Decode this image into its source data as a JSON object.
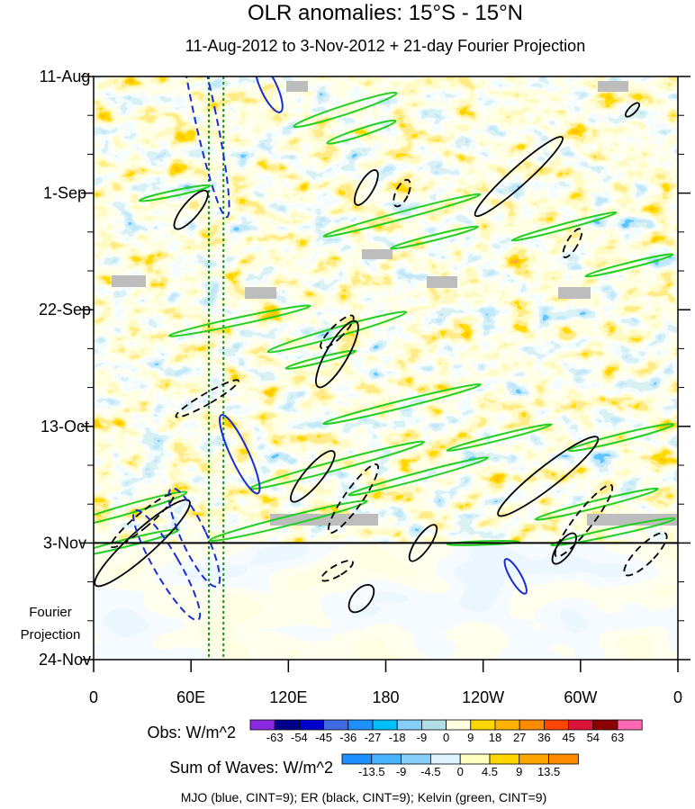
{
  "chart_data": {
    "type": "heatmap",
    "title": "OLR anomalies: 15°S - 15°N",
    "subtitle": "11-Aug-2012 to 3-Nov-2012 + 21-day Fourier Projection",
    "x_ticks": [
      {
        "lon": 0,
        "label": "0"
      },
      {
        "lon": 60,
        "label": "60E"
      },
      {
        "lon": 120,
        "label": "120E"
      },
      {
        "lon": 180,
        "label": "180"
      },
      {
        "lon": 240,
        "label": "120W"
      },
      {
        "lon": 300,
        "label": "60W"
      },
      {
        "lon": 360,
        "label": "0"
      }
    ],
    "y_ticks": [
      {
        "day": 0,
        "label": "11-Aug"
      },
      {
        "day": 21,
        "label": "1-Sep"
      },
      {
        "day": 42,
        "label": "22-Sep"
      },
      {
        "day": 63,
        "label": "13-Oct"
      },
      {
        "day": 84,
        "label": "3-Nov"
      },
      {
        "day": 105,
        "label": "24-Nov"
      }
    ],
    "xlim": [
      0,
      360
    ],
    "ylim_days": [
      0,
      105
    ],
    "observation_end_day": 84,
    "projection_label_line1": "Fourier",
    "projection_label_line2": "Projection",
    "obs_colorbar": {
      "label": "Obs: W/m^2",
      "levels": [
        "-63",
        "-54",
        "-45",
        "-36",
        "-27",
        "-18",
        "-9",
        "0",
        "9",
        "18",
        "27",
        "36",
        "45",
        "54",
        "63"
      ],
      "colors": [
        "#8a2be2",
        "#00008b",
        "#0000cd",
        "#4169e1",
        "#1e90ff",
        "#00bfff",
        "#87cefa",
        "#b0e0e6",
        "#ffffe0",
        "#ffd700",
        "#ffb300",
        "#ff8c00",
        "#ff4500",
        "#dc143c",
        "#8b0000",
        "#ff69b4"
      ]
    },
    "waves_colorbar": {
      "label": "Sum of Waves: W/m^2",
      "levels": [
        "-13.5",
        "-9",
        "-4.5",
        "0",
        "4.5",
        "9",
        "13.5"
      ],
      "colors": [
        "#1e90ff",
        "#48b4ff",
        "#87cefa",
        "#dff4ff",
        "#ffffc0",
        "#ffd700",
        "#ffa500",
        "#ff8c00"
      ]
    },
    "mjo_phase_lines_lon": [
      71,
      80
    ],
    "waves": {
      "mjo": [
        {
          "lon": 68,
          "day": 6,
          "rx": 12,
          "ry": 122,
          "rot": -12,
          "sign": -1
        },
        {
          "lon": 90,
          "day": 68,
          "rx": 10,
          "ry": 48,
          "rot": -25,
          "sign": 1
        },
        {
          "lon": 62,
          "day": 83,
          "rx": 14,
          "ry": 60,
          "rot": -25,
          "sign": -1
        },
        {
          "lon": 45,
          "day": 88,
          "rx": 14,
          "ry": 70,
          "rot": -30,
          "sign": -1
        },
        {
          "lon": 108,
          "day": 2,
          "rx": 9,
          "ry": 30,
          "rot": -25,
          "sign": 1
        },
        {
          "lon": 260,
          "day": 90,
          "rx": 6,
          "ry": 22,
          "rot": -30,
          "sign": 1
        }
      ],
      "er": [
        {
          "lon": 60,
          "day": 24,
          "rx": 9,
          "ry": 27,
          "rot": 40,
          "sign": 1
        },
        {
          "lon": 168,
          "day": 20,
          "rx": 8,
          "ry": 22,
          "rot": 30,
          "sign": 1
        },
        {
          "lon": 190,
          "day": 21,
          "rx": 7,
          "ry": 16,
          "rot": 25,
          "sign": -1
        },
        {
          "lon": 262,
          "day": 18,
          "rx": 10,
          "ry": 65,
          "rot": 48,
          "sign": 1
        },
        {
          "lon": 332,
          "day": 6,
          "rx": 4,
          "ry": 10,
          "rot": 45,
          "sign": 1
        },
        {
          "lon": 295,
          "day": 30,
          "rx": 6,
          "ry": 18,
          "rot": 30,
          "sign": -1
        },
        {
          "lon": 150,
          "day": 46,
          "rx": 7,
          "ry": 25,
          "rot": 45,
          "sign": -1
        },
        {
          "lon": 150,
          "day": 50,
          "rx": 12,
          "ry": 42,
          "rot": 30,
          "sign": 1
        },
        {
          "lon": 70,
          "day": 58,
          "rx": 6,
          "ry": 40,
          "rot": 60,
          "sign": -1
        },
        {
          "lon": 135,
          "day": 72,
          "rx": 10,
          "ry": 36,
          "rot": 40,
          "sign": 1
        },
        {
          "lon": 160,
          "day": 76,
          "rx": 10,
          "ry": 46,
          "rot": 35,
          "sign": -1
        },
        {
          "lon": 280,
          "day": 72,
          "rx": 12,
          "ry": 70,
          "rot": 52,
          "sign": 1
        },
        {
          "lon": 302,
          "day": 80,
          "rx": 10,
          "ry": 50,
          "rot": 38,
          "sign": -1
        },
        {
          "lon": 30,
          "day": 80,
          "rx": 8,
          "ry": 45,
          "rot": 50,
          "sign": -1
        },
        {
          "lon": 30,
          "day": 84,
          "rx": 14,
          "ry": 70,
          "rot": 48,
          "sign": 1
        },
        {
          "lon": 150,
          "day": 89,
          "rx": 6,
          "ry": 20,
          "rot": 60,
          "sign": -1
        },
        {
          "lon": 165,
          "day": 94,
          "rx": 10,
          "ry": 18,
          "rot": 40,
          "sign": 1
        },
        {
          "lon": 203,
          "day": 84,
          "rx": 8,
          "ry": 24,
          "rot": 35,
          "sign": 1
        },
        {
          "lon": 290,
          "day": 85,
          "rx": 8,
          "ry": 20,
          "rot": 35,
          "sign": 1
        },
        {
          "lon": 340,
          "day": 86,
          "rx": 10,
          "ry": 32,
          "rot": 45,
          "sign": -1
        }
      ],
      "kelvin": [
        {
          "lon": 155,
          "day": 6,
          "rx": 5,
          "ry": 60,
          "rot": 72
        },
        {
          "lon": 165,
          "day": 10,
          "rx": 4,
          "ry": 40,
          "rot": 72
        },
        {
          "lon": 50,
          "day": 21,
          "rx": 3,
          "ry": 40,
          "rot": 78
        },
        {
          "lon": 190,
          "day": 25,
          "rx": 4,
          "ry": 90,
          "rot": 75
        },
        {
          "lon": 210,
          "day": 29,
          "rx": 3,
          "ry": 50,
          "rot": 76
        },
        {
          "lon": 290,
          "day": 27,
          "rx": 3,
          "ry": 60,
          "rot": 75
        },
        {
          "lon": 330,
          "day": 34,
          "rx": 3,
          "ry": 50,
          "rot": 76
        },
        {
          "lon": 90,
          "day": 44,
          "rx": 4,
          "ry": 80,
          "rot": 78
        },
        {
          "lon": 150,
          "day": 46,
          "rx": 5,
          "ry": 80,
          "rot": 74
        },
        {
          "lon": 140,
          "day": 51,
          "rx": 3,
          "ry": 40,
          "rot": 76
        },
        {
          "lon": 190,
          "day": 59,
          "rx": 4,
          "ry": 90,
          "rot": 76
        },
        {
          "lon": 250,
          "day": 65,
          "rx": 3,
          "ry": 60,
          "rot": 76
        },
        {
          "lon": 325,
          "day": 65,
          "rx": 4,
          "ry": 60,
          "rot": 76
        },
        {
          "lon": 150,
          "day": 70,
          "rx": 5,
          "ry": 100,
          "rot": 75
        },
        {
          "lon": 200,
          "day": 72,
          "rx": 4,
          "ry": 80,
          "rot": 75
        },
        {
          "lon": 20,
          "day": 78,
          "rx": 5,
          "ry": 70,
          "rot": 74
        },
        {
          "lon": 20,
          "day": 84,
          "rx": 4,
          "ry": 60,
          "rot": 76
        },
        {
          "lon": 120,
          "day": 80,
          "rx": 5,
          "ry": 90,
          "rot": 76
        },
        {
          "lon": 310,
          "day": 77,
          "rx": 4,
          "ry": 70,
          "rot": 76
        },
        {
          "lon": 320,
          "day": 82,
          "rx": 4,
          "ry": 70,
          "rot": 78
        },
        {
          "lon": 240,
          "day": 84,
          "rx": 2,
          "ry": 40,
          "rot": 88
        }
      ]
    },
    "footnote": "MJO (blue, CINT=9); ER (black, CINT=9); Kelvin (green, CINT=9)"
  }
}
